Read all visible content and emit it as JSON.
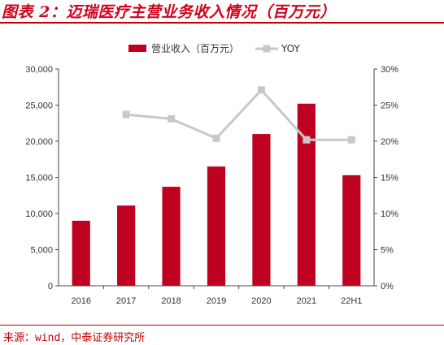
{
  "header": {
    "title": "图表 2：迈瑞医疗主营业务收入情况（百万元）"
  },
  "footer": {
    "source": "来源：wind，中泰证券研究所"
  },
  "chart_data": {
    "type": "bar",
    "categories": [
      "2016",
      "2017",
      "2018",
      "2019",
      "2020",
      "2021",
      "22H1"
    ],
    "series": [
      {
        "name": "营业收入（百万元）",
        "type": "bar",
        "axis": "left",
        "values": [
          9000,
          11100,
          13700,
          16500,
          21000,
          25200,
          15300
        ],
        "color": "#c00020"
      },
      {
        "name": "YOY",
        "type": "line",
        "axis": "right",
        "values": [
          null,
          23.7,
          23.1,
          20.4,
          27.1,
          20.2,
          20.2
        ],
        "color": "#c8c8c8"
      }
    ],
    "ylim_left": [
      0,
      30000
    ],
    "ylim_right": [
      0,
      30
    ],
    "yticks_left": [
      "0",
      "5,000",
      "10,000",
      "15,000",
      "20,000",
      "25,000",
      "30,000"
    ],
    "yticks_right": [
      "0%",
      "5%",
      "10%",
      "15%",
      "20%",
      "25%",
      "30%"
    ],
    "legend_position": "top",
    "grid": false
  }
}
